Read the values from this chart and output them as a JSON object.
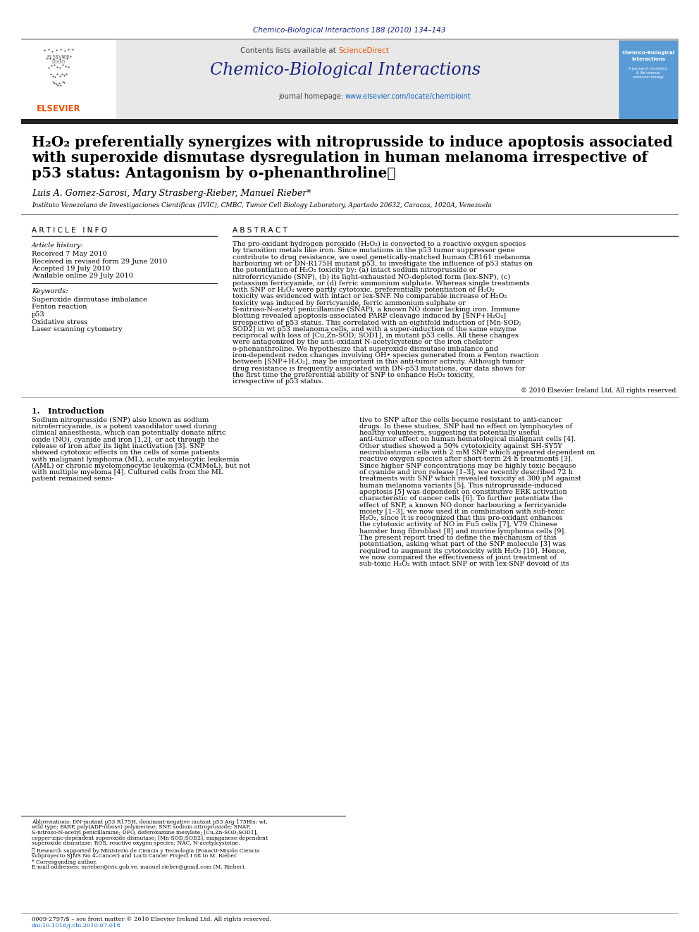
{
  "journal_ref": "Chemico-Biological Interactions 188 (2010) 134–143",
  "journal_ref_color": "#1a237e",
  "sciencedirect_color": "#e65100",
  "journal_name": "Chemico-Biological Interactions",
  "journal_homepage_url": "www.elsevier.com/locate/chembioint",
  "journal_homepage_color": "#1565c0",
  "title_line1": "H₂O₂ preferentially synergizes with nitroprusside to induce apoptosis associated",
  "title_line2": "with superoxide dismutase dysregulation in human melanoma irrespective of",
  "title_line3": "p53 status: Antagonism by o-phenanthroline⋆",
  "authors": "Luis A. Gomez-Sarosi, Mary Strasberg-Rieber, Manuel Rieber*",
  "affiliation": "Instituto Venezolano de Investigaciones Científicas (IVIC), CMBC, Tumor Cell Biology Laboratory, Apartado 20632, Caracas, 1020A, Venezuela",
  "article_info_header": "A R T I C L E   I N F O",
  "abstract_header": "A B S T R A C T",
  "article_history_label": "Article history:",
  "received1": "Received 7 May 2010",
  "received2": "Received in revised form 29 June 2010",
  "accepted": "Accepted 19 July 2010",
  "available": "Available online 29 July 2010",
  "keywords_label": "Keywords:",
  "keywords": [
    "Superoxide dismutase imbalance",
    "Fenton reaction",
    "p53",
    "Oxidative stress",
    "Laser scanning cytometry"
  ],
  "abstract_text": "The pro-oxidant hydrogen peroxide (H₂O₂) is converted to a reactive oxygen species by transition metals like iron. Since mutations in the p53 tumor suppressor gene contribute to drug resistance, we used genetically-matched human CB161 melanoma harbouring wt or DN-R175H mutant p53, to investigate the influence of p53 status on the potentiation of H₂O₂ toxicity by: (a) intact sodium nitroprusside or nitroferricyanide (SNP), (b) its light-exhausted NO-depleted form (lex-SNP), (c) potassium ferricyanide, or (d) ferric ammonium sulphate. Whereas single treatments with SNP or H₂O₂ were partly cytotoxic, preferentially potentiation of H₂O₂ toxicity was evidenced with intact or lex-SNP. No comparable increase of H₂O₂ toxicity was induced by ferricyanide, ferric ammonium sulphate or S-nitroso-N-acetyl penicillamine (SNAP), a known NO donor lacking iron. Immune blotting revealed apoptosis-associated PARP cleavage induced by [SNP+H₂O₂] irrespective of p53 status. This correlated with an eightfold induction of [Mn-SOD; SOD2] in wt p53 melanoma cells, and with a super-induction of the same enzyme reciprocal with loss of [Cu,Zn-SOD; SOD1], in mutant p53 cells. All these changes were antagonized by the anti-oxidant N-acetylcysteine or the iron chelator o-phenanthroline. We hypothesize that superoxide dismutase imbalance and iron-dependent redox changes involving OH• species generated from a Fenton reaction between [SNP+H₂O₂], may be important in this anti-tumor activity. Although tumor drug resistance is frequently associated with DN-p53 mutations, our data shows for the first time the preferential ability of SNP to enhance H₂O₂ toxicity, irrespective of p53 status.",
  "copyright_line": "© 2010 Elsevier Ireland Ltd. All rights reserved.",
  "intro_header": "1.   Introduction",
  "intro_col1": "Sodium nitroprusside (SNP) also known as sodium nitroferricyanide, is a potent vasodilator used during clinical anaesthesia, which can potentially donate nitric oxide (NO), cyanide and iron [1,2], or act through the release of iron after its light inactivation [3]. SNP showed cytotoxic effects on the cells of some patients with malignant lymphoma (ML), acute myelocytic leukemia (AML) or chronic myelomonocytic leukemia (CMMoL), but not with multiple myeloma [4]. Cultured cells from the ML patient remained sensi-",
  "intro_col2": "tive to SNP after the cells became resistant to anti-cancer drugs. In these studies, SNP had no effect on lymphocytes of healthy volunteers, suggesting its potentially useful anti-tumor effect on human hematological malignant cells [4]. Other studies showed a 50% cytotoxicity against SH-SY5Y neuroblastoma cells with 2 mM SNP which appeared dependent on reactive oxygen species after short-term 24 h treatments [3]. Since higher SNP concentrations may be highly toxic because of cyanide and iron release [1–3], we recently described 72 h treatments with SNP which revealed toxicity at 300 μM against human melanoma variants [5]. This nitroprusside-induced apoptosis [5] was dependent on constitutive ERK activation characteristic of cancer cells [6]. To further potentiate the effect of SNP, a known NO donor harbouring a ferricyanide moiety [1–3], we now used it in combination with sub-toxic H₂O₂, since it is recognized that this pro-oxidant enhances the cytotoxic activity of NO in Fu5 cells [7], V79 Chinese hamster lung fibroblast [8] and murine lymphoma cells [9]. The present report tried to define the mechanism of this potentiation, asking what part of the SNP molecule [3] was required to augment its cytotoxicity with H₂O₂ [10]. Hence, we now compared the effectiveness of joint treatment of sub-toxic H₂O₂ with intact SNP or with lex-SNP devoid of its",
  "footnote_text": "Abbreviations: DN-mutant p53 R175H, dominant-negative mutant p53 Arg 175His; wt, wild type; PARP, poly(ADP-ribose) polymerase; SNP, sodium nitroprusside; SNAP, S-nitroso-N-acetyl penicillamine; DFO, deferoxamine mesylate; [Cu,Zn-SOD;SOD1], copper-zinc-dependent superoxide dismutase; [Mn-SOD;SOD2], manganese-dependent superoxide dismutase; ROS, reactive oxygen species; NAC, N-acetylcysteine.",
  "research_support": "☆ Research supported by Ministerio de Ciencia y Tecnologia (Fonacit-Misión Ciencia subproyecto SJNS No 4–Cancer) and Locti Cancer Project I 68 to M. Rieber.",
  "corresponding": "* Corresponding author.",
  "email_line": "E-mail addresses: mrieber@ivic.gob.ve, manuel.rieber@gmail.com (M. Rieber).",
  "issn_line": "0009-2797/$ – see front matter © 2010 Elsevier Ireland Ltd. All rights reserved.",
  "doi_line": "doi:10.1016/j.cbi.2010.07.018",
  "header_bg": "#e8e8e8",
  "dark_blue": "#1a237e",
  "dark_bar": "#222222"
}
